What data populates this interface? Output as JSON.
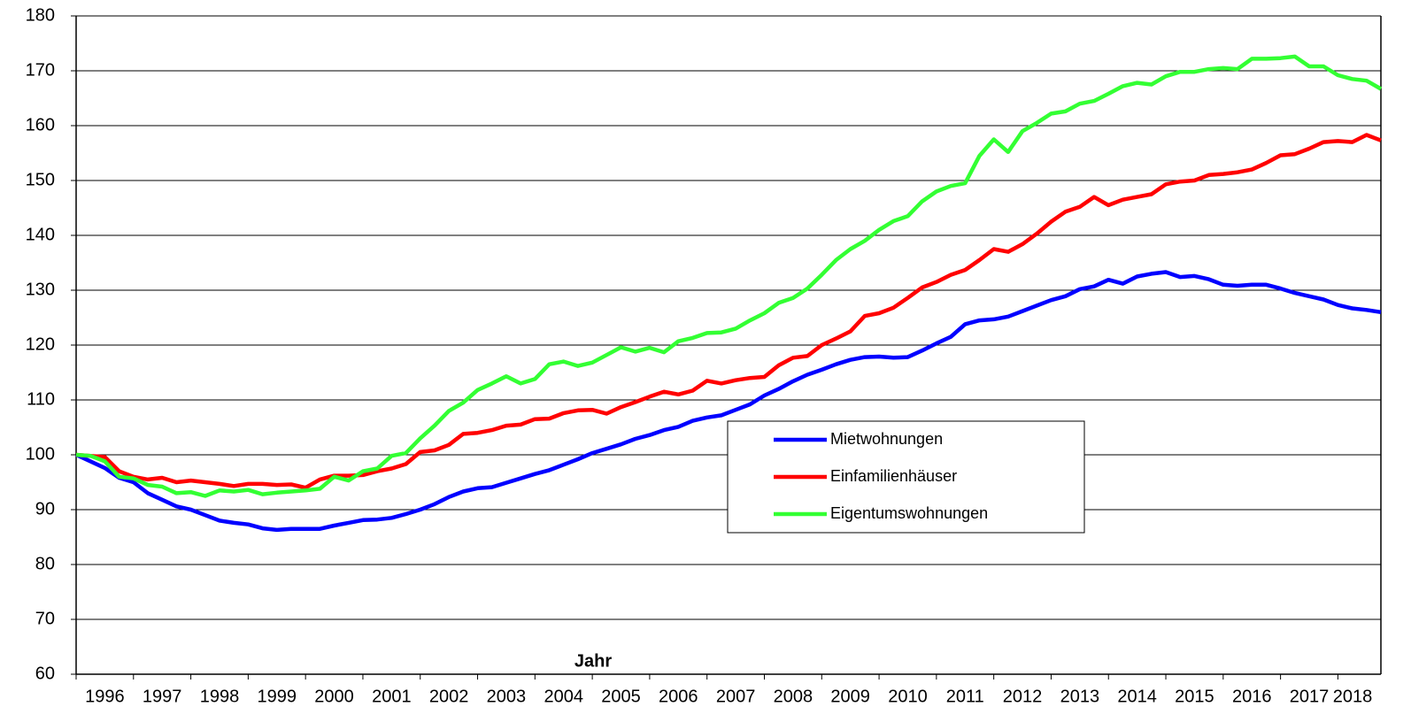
{
  "chart_data": {
    "type": "line",
    "x_label": "Jahr",
    "x": [
      1996,
      1996.25,
      1996.5,
      1996.75,
      1997,
      1997.25,
      1997.5,
      1997.75,
      1998,
      1998.25,
      1998.5,
      1998.75,
      1999,
      1999.25,
      1999.5,
      1999.75,
      2000,
      2000.25,
      2000.5,
      2000.75,
      2001,
      2001.25,
      2001.5,
      2001.75,
      2002,
      2002.25,
      2002.5,
      2002.75,
      2003,
      2003.25,
      2003.5,
      2003.75,
      2004,
      2004.25,
      2004.5,
      2004.75,
      2005,
      2005.25,
      2005.5,
      2005.75,
      2006,
      2006.25,
      2006.5,
      2006.75,
      2007,
      2007.25,
      2007.5,
      2007.75,
      2008,
      2008.25,
      2008.5,
      2008.75,
      2009,
      2009.25,
      2009.5,
      2009.75,
      2010,
      2010.25,
      2010.5,
      2010.75,
      2011,
      2011.25,
      2011.5,
      2011.75,
      2012,
      2012.25,
      2012.5,
      2012.75,
      2013,
      2013.25,
      2013.5,
      2013.75,
      2014,
      2014.25,
      2014.5,
      2014.75,
      2015,
      2015.25,
      2015.5,
      2015.75,
      2016,
      2016.25,
      2016.5,
      2016.75,
      2017,
      2017.25,
      2017.5,
      2017.75,
      2018,
      2018.25,
      2018.5,
      2018.75
    ],
    "series": [
      {
        "name": "Mietwohnungen",
        "color": "#0000ff",
        "values": [
          100,
          98.8,
          97.6,
          95.8,
          95.0,
          93.0,
          91.8,
          90.6,
          90.0,
          89.0,
          88.0,
          87.6,
          87.3,
          86.6,
          86.3,
          86.5,
          86.5,
          86.5,
          87.1,
          87.6,
          88.1,
          88.2,
          88.5,
          89.2,
          90.0,
          91.0,
          92.3,
          93.3,
          93.9,
          94.1,
          94.9,
          95.7,
          96.5,
          97.2,
          98.2,
          99.2,
          100.3,
          101.1,
          101.9,
          102.9,
          103.6,
          104.5,
          105.1,
          106.2,
          106.8,
          107.2,
          108.2,
          109.2,
          110.8,
          112.0,
          113.4,
          114.6,
          115.5,
          116.5,
          117.3,
          117.8,
          117.9,
          117.7,
          117.8,
          119.0,
          120.3,
          121.5,
          123.8,
          124.5,
          124.7,
          125.2,
          126.2,
          127.2,
          128.2,
          128.9,
          130.2,
          130.7,
          131.9,
          131.2,
          132.5,
          133.0,
          133.3,
          132.4,
          132.6,
          132.0,
          131.0,
          130.8,
          131.0,
          131.0,
          130.3,
          129.5,
          128.9,
          128.3,
          127.3,
          126.7,
          126.4,
          126.0
        ]
      },
      {
        "name": "Einfamilienhäuser",
        "color": "#ff0000",
        "values": [
          100,
          99.8,
          99.6,
          97.0,
          96.0,
          95.5,
          95.8,
          95.0,
          95.3,
          95.0,
          94.7,
          94.3,
          94.7,
          94.7,
          94.5,
          94.6,
          94.0,
          95.5,
          96.2,
          96.2,
          96.3,
          97.0,
          97.5,
          98.3,
          100.5,
          100.8,
          101.8,
          103.8,
          104.0,
          104.5,
          105.3,
          105.5,
          106.5,
          106.6,
          107.6,
          108.1,
          108.2,
          107.5,
          108.7,
          109.6,
          110.6,
          111.5,
          111.0,
          111.7,
          113.5,
          113.0,
          113.6,
          114.0,
          114.2,
          116.3,
          117.7,
          118.0,
          120.0,
          121.2,
          122.5,
          125.3,
          125.8,
          126.8,
          128.6,
          130.5,
          131.5,
          132.8,
          133.7,
          135.5,
          137.5,
          137.0,
          138.4,
          140.3,
          142.5,
          144.3,
          145.2,
          147.0,
          145.5,
          146.5,
          147.0,
          147.5,
          149.3,
          149.8,
          150.0,
          151.0,
          151.2,
          151.5,
          152.0,
          153.2,
          154.6,
          154.8,
          155.8,
          157.0,
          157.2,
          157.0,
          158.3,
          157.3
        ]
      },
      {
        "name": "Eigentumswohnungen",
        "color": "#33ff33",
        "values": [
          100,
          99.8,
          98.8,
          96.0,
          95.7,
          94.5,
          94.2,
          93.0,
          93.2,
          92.5,
          93.5,
          93.3,
          93.6,
          92.8,
          93.1,
          93.3,
          93.5,
          93.8,
          96.0,
          95.3,
          97.0,
          97.5,
          99.8,
          100.3,
          103.0,
          105.3,
          108.0,
          109.5,
          111.8,
          113.0,
          114.3,
          113.0,
          113.8,
          116.5,
          117.0,
          116.2,
          116.8,
          118.2,
          119.6,
          118.8,
          119.5,
          118.7,
          120.7,
          121.3,
          122.2,
          122.3,
          123.0,
          124.5,
          125.8,
          127.7,
          128.6,
          130.3,
          132.8,
          135.5,
          137.5,
          139.0,
          141.0,
          142.6,
          143.5,
          146.2,
          148.0,
          149.0,
          149.5,
          154.5,
          157.5,
          155.2,
          159.0,
          160.5,
          162.2,
          162.6,
          164.0,
          164.5,
          165.8,
          167.2,
          167.8,
          167.5,
          169.0,
          169.8,
          169.8,
          170.3,
          170.5,
          170.3,
          172.2,
          172.2,
          172.3,
          172.6,
          170.8,
          170.8,
          169.2,
          168.5,
          168.2,
          166.7
        ]
      }
    ],
    "xlim": [
      1996,
      2018.75
    ],
    "xticks": [
      1996,
      1997,
      1998,
      1999,
      2000,
      2001,
      2002,
      2003,
      2004,
      2005,
      2006,
      2007,
      2008,
      2009,
      2010,
      2011,
      2012,
      2013,
      2014,
      2015,
      2016,
      2017,
      2018
    ],
    "ylim": [
      60,
      180
    ],
    "yticks": [
      60,
      70,
      80,
      90,
      100,
      110,
      120,
      130,
      140,
      150,
      160,
      170,
      180
    ],
    "grid": true,
    "legend": "center-right"
  }
}
